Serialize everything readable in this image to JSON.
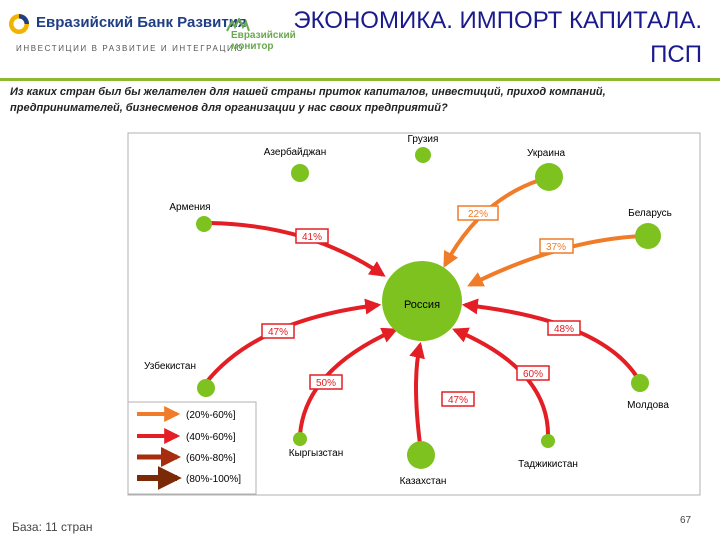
{
  "header": {
    "bank_name": "Евразийский Банк Развития",
    "bank_tagline": "ИНВЕСТИЦИИ В РАЗВИТИЕ И ИНТЕГРАЦИЮ",
    "monitor_line1": "Евразийский",
    "monitor_line2": "монитор",
    "title_line1": "ЭКОНОМИКА. ИМПОРТ КАПИТАЛА.",
    "title_line2": "ПСП",
    "brand_color": "#1f3e86",
    "accent_color": "#8fb832"
  },
  "question": "Из каких стран был бы желателен для нашей страны приток капиталов, инвестиций, приход компаний, предпринимателей, бизнесменов для организации у нас своих предприятий?",
  "diagram": {
    "center": {
      "label": "Россия",
      "color": "#7dc21e"
    },
    "countries": [
      {
        "id": "azerbaijan",
        "label": "Азербайджан"
      },
      {
        "id": "georgia",
        "label": "Грузия"
      },
      {
        "id": "ukraine",
        "label": "Украина"
      },
      {
        "id": "armenia",
        "label": "Армения"
      },
      {
        "id": "belarus",
        "label": "Беларусь"
      },
      {
        "id": "uzbekistan",
        "label": "Узбекистан"
      },
      {
        "id": "moldova",
        "label": "Молдова"
      },
      {
        "id": "kyrgyzstan",
        "label": "Кыргызстан"
      },
      {
        "id": "kazakhstan",
        "label": "Казахстан"
      },
      {
        "id": "tajikistan",
        "label": "Таджикистан"
      }
    ],
    "flows": [
      {
        "from": "ukraine",
        "value": "22%",
        "band": "20-60"
      },
      {
        "from": "belarus",
        "value": "37%",
        "band": "20-60"
      },
      {
        "from": "armenia",
        "value": "41%",
        "band": "40-60"
      },
      {
        "from": "uzbekistan",
        "value": "47%",
        "band": "40-60"
      },
      {
        "from": "moldova",
        "value": "48%",
        "band": "40-60"
      },
      {
        "from": "kyrgyzstan",
        "value": "50%",
        "band": "40-60"
      },
      {
        "from": "tajikistan",
        "value": "60%",
        "band": "40-60"
      },
      {
        "from": "kazakhstan",
        "value": "47%",
        "band": "40-60"
      }
    ]
  },
  "legend": [
    {
      "label": "(20%-60%]",
      "color": "#f07b28"
    },
    {
      "label": "(40%-60%]",
      "color": "#e31e24"
    },
    {
      "label": "(60%-80%]",
      "color": "#a62e0f"
    },
    {
      "label": "(80%-100%]",
      "color": "#7a2a06"
    }
  ],
  "footer": {
    "base": "База: 11 стран",
    "page_number": "67"
  }
}
